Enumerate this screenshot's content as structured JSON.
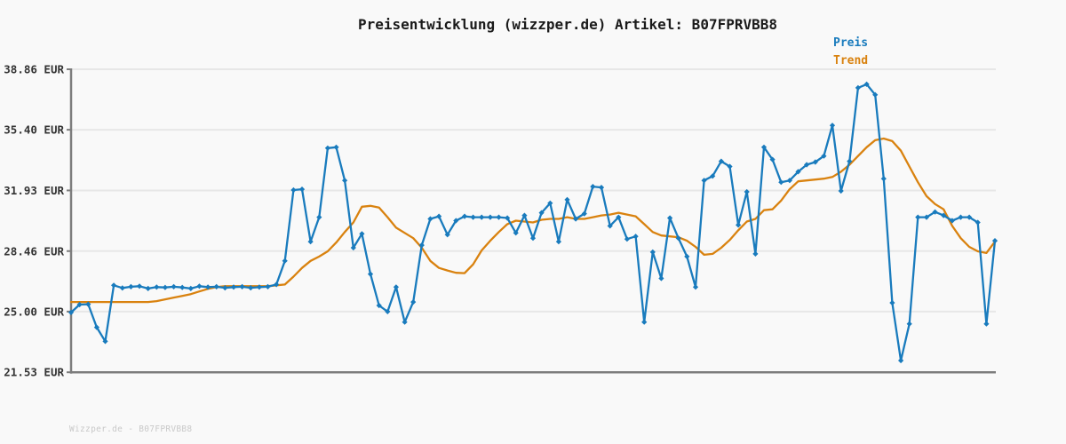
{
  "title": "Preisentwicklung (wizzper.de) Artikel: B07FPRVBB8",
  "watermark": "Wizzper.de - B07FPRVBB8",
  "legend": {
    "items": [
      {
        "label": "Preis",
        "color": "#197bbd"
      },
      {
        "label": "Trend",
        "color": "#d9820f"
      }
    ]
  },
  "colors": {
    "background": "#f9f9f9",
    "preis": "#197bbd",
    "trend": "#d9820f",
    "grid": "#e7e7e7",
    "axis": "#7d7d7d",
    "title": "#1a1a1a",
    "tick_label": "#333333",
    "watermark": "#c9c9c9"
  },
  "chart_data": {
    "type": "line",
    "title": "Preisentwicklung (wizzper.de) Artikel: B07FPRVBB8",
    "unit": "EUR",
    "ylim": [
      21.53,
      38.86
    ],
    "y_ticks": [
      38.86,
      35.4,
      31.93,
      28.46,
      25.0,
      21.53
    ],
    "y_tick_labels": [
      "38.86 EUR",
      "35.40 EUR",
      "31.93 EUR",
      "28.46 EUR",
      "25.00 EUR",
      "21.53 EUR"
    ],
    "x_tick_labels": [],
    "grid": true,
    "legend_position": "top-right",
    "series": [
      {
        "name": "Preis",
        "color": "#197bbd",
        "markers": true,
        "values": [
          24.95,
          25.4,
          25.42,
          24.1,
          23.3,
          26.5,
          26.35,
          26.42,
          26.45,
          26.32,
          26.4,
          26.38,
          26.42,
          26.38,
          26.32,
          26.45,
          26.4,
          26.42,
          26.36,
          26.4,
          26.42,
          26.36,
          26.4,
          26.42,
          26.55,
          27.9,
          31.95,
          32.0,
          29.0,
          30.4,
          34.35,
          34.4,
          32.5,
          28.65,
          29.45,
          27.15,
          25.35,
          25.0,
          26.4,
          24.4,
          25.55,
          28.8,
          30.3,
          30.45,
          29.4,
          30.2,
          30.45,
          30.4,
          30.4,
          30.4,
          30.4,
          30.35,
          29.5,
          30.5,
          29.2,
          30.65,
          31.2,
          29.0,
          31.4,
          30.3,
          30.6,
          32.15,
          32.1,
          29.9,
          30.4,
          29.15,
          29.3,
          24.4,
          28.4,
          26.9,
          30.35,
          29.2,
          28.15,
          26.4,
          32.5,
          32.75,
          33.6,
          33.3,
          29.95,
          31.85,
          28.3,
          34.4,
          33.7,
          32.4,
          32.5,
          33.0,
          33.4,
          33.55,
          33.9,
          35.65,
          31.9,
          33.6,
          37.8,
          38.0,
          37.4,
          32.6,
          25.5,
          22.2,
          24.3,
          30.4,
          30.4,
          30.7,
          30.5,
          30.2,
          30.4,
          30.4,
          30.1,
          24.3,
          29.05
        ]
      },
      {
        "name": "Trend",
        "color": "#d9820f",
        "markers": false,
        "values": [
          25.55,
          25.55,
          25.55,
          25.55,
          25.55,
          25.55,
          25.55,
          25.55,
          25.55,
          25.55,
          25.6,
          25.7,
          25.8,
          25.9,
          26.0,
          26.15,
          26.3,
          26.4,
          26.45,
          26.45,
          26.45,
          26.45,
          26.45,
          26.45,
          26.5,
          26.55,
          27.0,
          27.5,
          27.9,
          28.15,
          28.45,
          28.95,
          29.55,
          30.1,
          31.0,
          31.05,
          30.95,
          30.4,
          29.8,
          29.5,
          29.2,
          28.65,
          27.9,
          27.5,
          27.35,
          27.22,
          27.2,
          27.7,
          28.5,
          29.05,
          29.55,
          30.0,
          30.2,
          30.15,
          30.1,
          30.25,
          30.3,
          30.3,
          30.4,
          30.3,
          30.3,
          30.4,
          30.5,
          30.55,
          30.65,
          30.55,
          30.45,
          30.0,
          29.55,
          29.35,
          29.3,
          29.25,
          29.05,
          28.7,
          28.25,
          28.3,
          28.65,
          29.1,
          29.65,
          30.15,
          30.3,
          30.8,
          30.85,
          31.35,
          32.0,
          32.45,
          32.5,
          32.55,
          32.6,
          32.7,
          33.0,
          33.4,
          33.9,
          34.4,
          34.8,
          34.9,
          34.75,
          34.2,
          33.3,
          32.4,
          31.6,
          31.15,
          30.85,
          29.9,
          29.2,
          28.7,
          28.45,
          28.35,
          29.0
        ]
      }
    ]
  }
}
